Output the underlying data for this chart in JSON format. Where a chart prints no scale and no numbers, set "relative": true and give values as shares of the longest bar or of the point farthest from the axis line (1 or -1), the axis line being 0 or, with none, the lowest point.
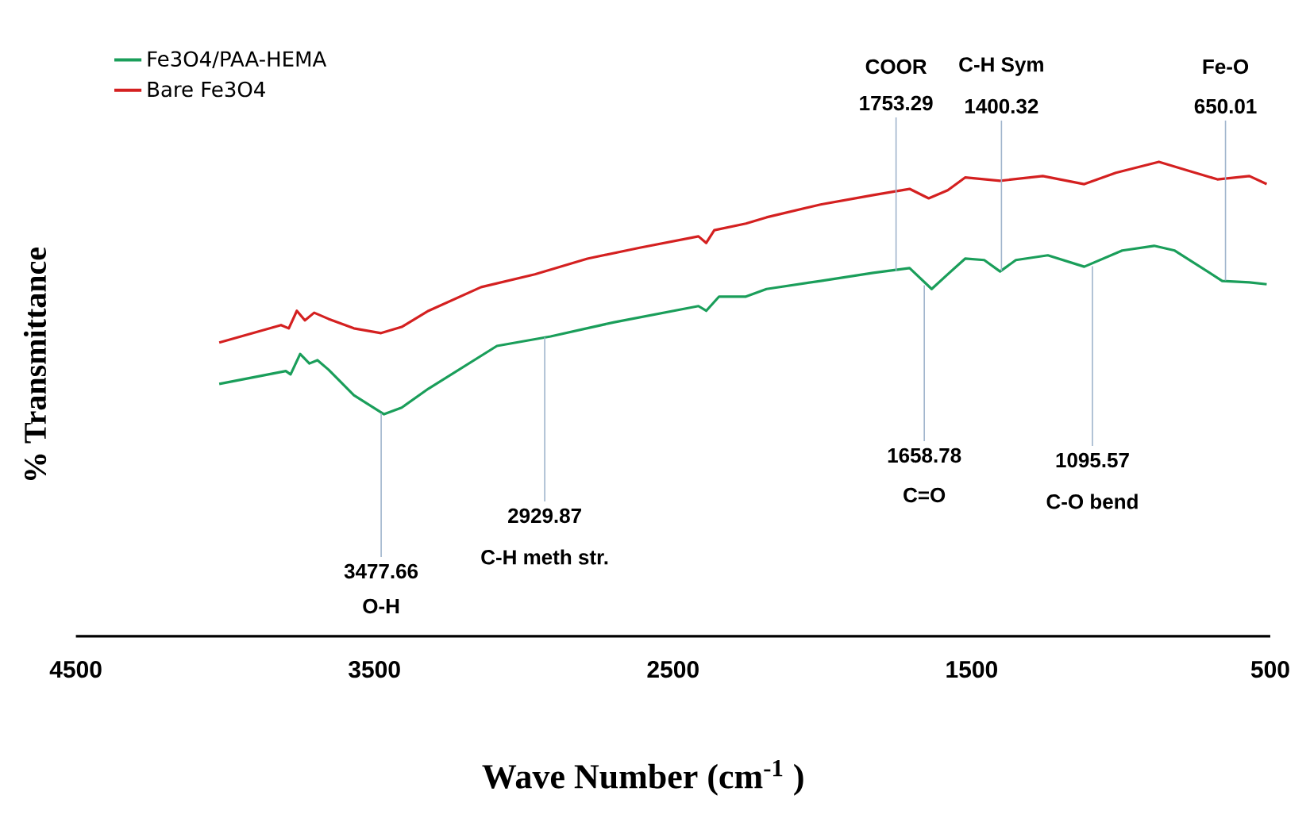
{
  "chart_data": {
    "type": "line",
    "relative": true,
    "xlabel": "Wave Number (cm$^{-1}$ )",
    "ylabel": "% Transmittance",
    "xlim": [
      4500,
      500
    ],
    "xticks": [
      4500,
      3500,
      2500,
      1500,
      500
    ],
    "legend": "top left",
    "series": [
      {
        "name": "Fe3O4/PAA-HEMA",
        "color": "#1a9e5a",
        "x": [
          4020,
          3797,
          3781,
          3749,
          3718,
          3691,
          3654,
          3569,
          3468,
          3409,
          3319,
          3090,
          2910,
          2697,
          2415,
          2389,
          2346,
          2256,
          2187,
          2006,
          1830,
          1708,
          1634,
          1580,
          1522,
          1458,
          1405,
          1352,
          1245,
          1123,
          996,
          889,
          820,
          661,
          570,
          512
        ],
        "values": [
          0.532,
          0.559,
          0.552,
          0.595,
          0.575,
          0.582,
          0.562,
          0.508,
          0.468,
          0.482,
          0.522,
          0.612,
          0.632,
          0.662,
          0.696,
          0.686,
          0.716,
          0.716,
          0.732,
          0.749,
          0.766,
          0.776,
          0.732,
          0.763,
          0.796,
          0.793,
          0.769,
          0.793,
          0.803,
          0.779,
          0.813,
          0.823,
          0.813,
          0.749,
          0.746,
          0.742
        ]
      },
      {
        "name": "Bare Fe3O4",
        "color": "#d42020",
        "x": [
          4020,
          3813,
          3787,
          3760,
          3733,
          3702,
          3654,
          3569,
          3478,
          3409,
          3319,
          3143,
          2963,
          2787,
          2612,
          2415,
          2389,
          2362,
          2256,
          2187,
          2006,
          1830,
          1708,
          1644,
          1580,
          1522,
          1405,
          1262,
          1123,
          1017,
          873,
          767,
          677,
          570,
          512
        ],
        "values": [
          0.619,
          0.656,
          0.649,
          0.686,
          0.666,
          0.682,
          0.669,
          0.649,
          0.639,
          0.652,
          0.686,
          0.736,
          0.763,
          0.796,
          0.819,
          0.843,
          0.829,
          0.856,
          0.87,
          0.883,
          0.91,
          0.93,
          0.943,
          0.923,
          0.94,
          0.967,
          0.96,
          0.97,
          0.953,
          0.977,
          1,
          0.98,
          0.963,
          0.97,
          0.953
        ]
      }
    ],
    "annotations": [
      {
        "text": "3477.66",
        "x": 3477.66,
        "y": 0.47
      },
      "O-H",
      {
        "text": "2929.87",
        "x": 2929.87,
        "y": 0.63
      },
      "C-H meth str.",
      {
        "text": "1753.29",
        "x": 1753.29,
        "y": 0.77
      },
      "COOR",
      {
        "text": "1658.78",
        "x": 1658.78,
        "y": 0.74
      },
      "C=O",
      {
        "text": "1400.32",
        "x": 1400.32,
        "y": 0.77
      },
      "C-H Sym",
      {
        "text": "1095.57",
        "x": 1095.57,
        "y": 0.78
      },
      "C-O bend",
      {
        "text": "650.01",
        "x": 650.01,
        "y": 0.75
      },
      "Fe-O"
    ]
  }
}
